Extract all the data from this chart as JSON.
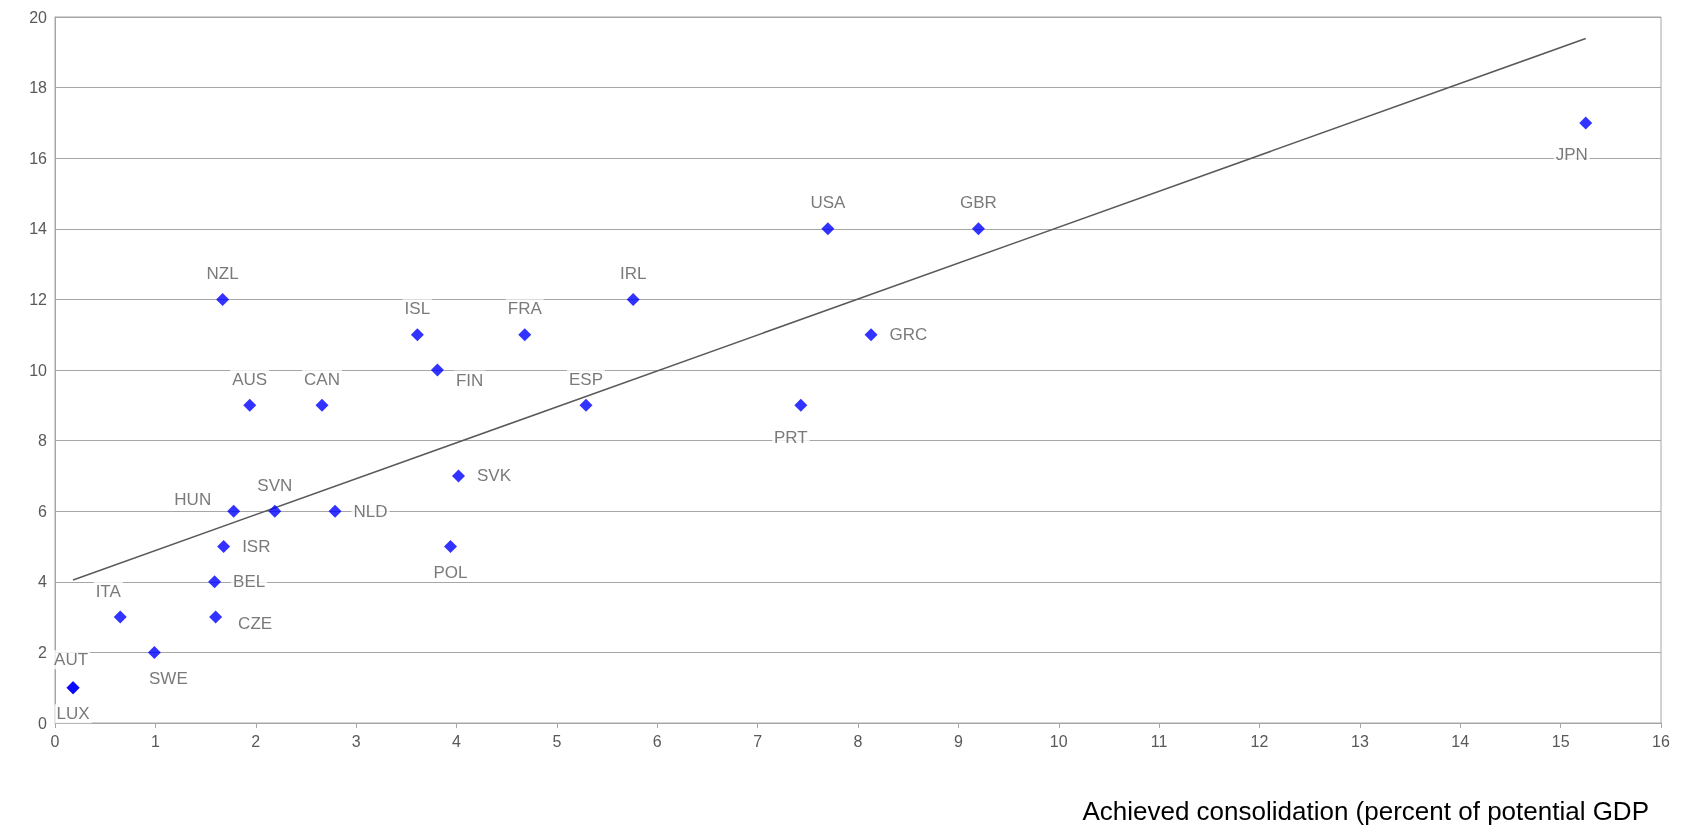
{
  "chart_data": {
    "type": "scatter",
    "xlabel": "Achieved consolidation (percent of potential GDP",
    "xlim": [
      0,
      16
    ],
    "xticks": [
      0,
      1,
      2,
      3,
      4,
      5,
      6,
      7,
      8,
      9,
      10,
      11,
      12,
      13,
      14,
      15,
      16
    ],
    "ylim": [
      0,
      20
    ],
    "yticks": [
      0,
      2,
      4,
      6,
      8,
      10,
      12,
      14,
      16,
      18,
      20
    ],
    "grid": "y",
    "series": [
      {
        "color": "#0000ff",
        "marker": "diamond",
        "x": [
          0.18,
          0.18,
          0.65,
          0.99,
          1.59,
          1.6,
          1.68,
          1.78,
          1.67,
          1.94,
          2.19,
          2.66,
          2.79,
          3.61,
          3.81,
          3.94,
          4.02,
          4.68,
          5.29,
          5.76,
          7.43,
          7.7,
          8.13,
          9.2,
          15.25
        ],
        "values": [
          1,
          1,
          3,
          2,
          4,
          3,
          5,
          6,
          12,
          9,
          6,
          9,
          6,
          11,
          10,
          5,
          7,
          11,
          9,
          12,
          9,
          14,
          11,
          14,
          17
        ],
        "value_labels": [
          "AUT",
          "LUX",
          "ITA",
          "SWE",
          "BEL",
          "CZE",
          "ISR",
          "HUN",
          "NZL",
          "AUS",
          "SVN",
          "CAN",
          "NLD",
          "ISL",
          "FIN",
          "POL",
          "SVK",
          "FRA",
          "ESP",
          "IRL",
          "PRT",
          "USA",
          "GRC",
          "GBR",
          "JPN"
        ]
      },
      {
        "type": "line",
        "color": "#595959",
        "marker": "none",
        "line_style": "solid",
        "x": [
          0.18,
          15.25
        ],
        "values": [
          4.05,
          19.39
        ]
      }
    ]
  }
}
